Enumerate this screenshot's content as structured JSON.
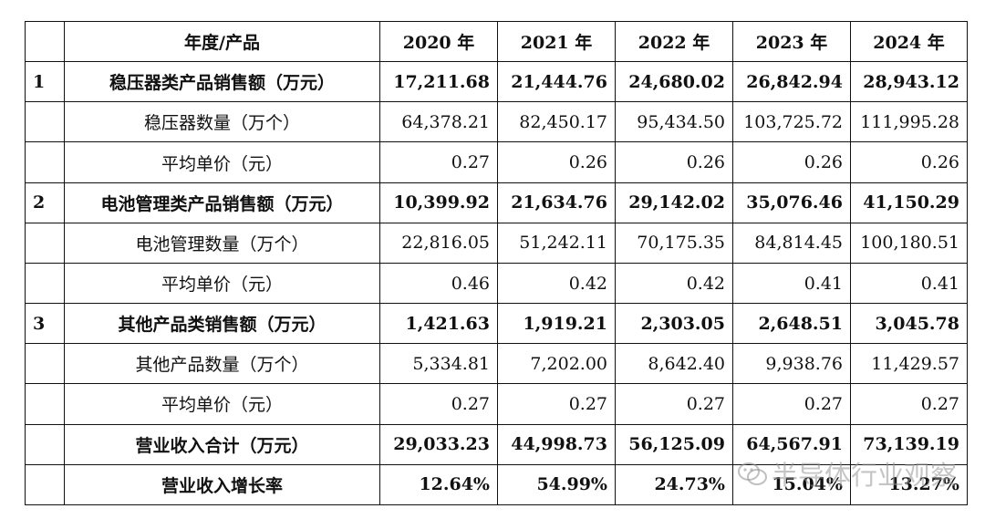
{
  "table": {
    "header": {
      "index": "",
      "label": "年度/产品",
      "years": [
        "2020 年",
        "2021 年",
        "2022 年",
        "2023 年",
        "2024 年"
      ]
    },
    "rows": [
      {
        "index": "1",
        "label": "稳压器类产品销售额（万元）",
        "bold": true,
        "values": [
          "17,211.68",
          "21,444.76",
          "24,680.02",
          "26,842.94",
          "28,943.12"
        ]
      },
      {
        "index": "",
        "label": "稳压器数量（万个）",
        "bold": false,
        "values": [
          "64,378.21",
          "82,450.17",
          "95,434.50",
          "103,725.72",
          "111,995.28"
        ]
      },
      {
        "index": "",
        "label": "平均单价（元）",
        "bold": false,
        "values": [
          "0.27",
          "0.26",
          "0.26",
          "0.26",
          "0.26"
        ]
      },
      {
        "index": "2",
        "label": "电池管理类产品销售额（万元）",
        "bold": true,
        "values": [
          "10,399.92",
          "21,634.76",
          "29,142.02",
          "35,076.46",
          "41,150.29"
        ]
      },
      {
        "index": "",
        "label": "电池管理数量（万个）",
        "bold": false,
        "values": [
          "22,816.05",
          "51,242.11",
          "70,175.35",
          "84,814.45",
          "100,180.51"
        ]
      },
      {
        "index": "",
        "label": "平均单价（元）",
        "bold": false,
        "values": [
          "0.46",
          "0.42",
          "0.42",
          "0.41",
          "0.41"
        ]
      },
      {
        "index": "3",
        "label": "其他产品类销售额（万元）",
        "bold": true,
        "values": [
          "1,421.63",
          "1,919.21",
          "2,303.05",
          "2,648.51",
          "3,045.78"
        ]
      },
      {
        "index": "",
        "label": "其他产品数量（万个）",
        "bold": false,
        "values": [
          "5,334.81",
          "7,202.00",
          "8,642.40",
          "9,938.76",
          "11,429.57"
        ]
      },
      {
        "index": "",
        "label": "平均单价（元）",
        "bold": false,
        "values": [
          "0.27",
          "0.27",
          "0.27",
          "0.27",
          "0.27"
        ]
      },
      {
        "index": "",
        "label": "营业收入合计（万元）",
        "bold": true,
        "values": [
          "29,033.23",
          "44,998.73",
          "56,125.09",
          "64,567.91",
          "73,139.19"
        ]
      },
      {
        "index": "",
        "label": "营业收入增长率",
        "bold": true,
        "values": [
          "12.64%",
          "54.99%",
          "24.73%",
          "15.04%",
          "13.27%"
        ]
      }
    ]
  },
  "watermark": {
    "text": "半导体行业观察",
    "icon": "wechat-icon"
  }
}
